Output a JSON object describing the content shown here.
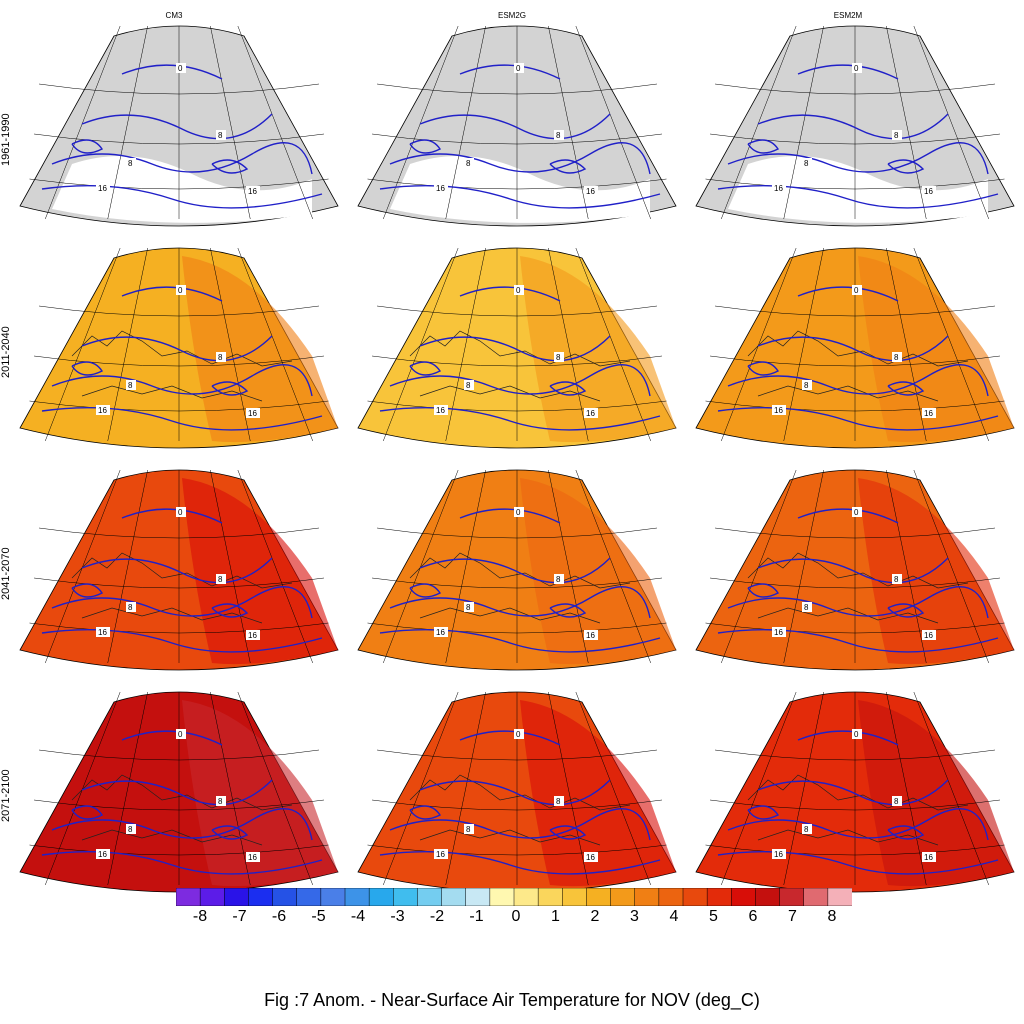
{
  "columns": [
    "CM3",
    "ESM2G",
    "ESM2M"
  ],
  "rows": [
    "1961-1990",
    "2011-2040",
    "2041-2070",
    "2071-2100"
  ],
  "panel_fill_levels": [
    [
      null,
      null,
      null
    ],
    [
      2,
      1.5,
      2.5
    ],
    [
      4.5,
      3,
      4
    ],
    [
      6,
      4.5,
      5
    ]
  ],
  "contour_labels": {
    "0": "0",
    "8": "8",
    "16": "16"
  },
  "colorbar": {
    "ticks": [
      "-8",
      "-7",
      "-6",
      "-5",
      "-4",
      "-3",
      "-2",
      "-1",
      "0",
      "1",
      "2",
      "3",
      "4",
      "5",
      "6",
      "7",
      "8"
    ],
    "colors": [
      "#7d2be0",
      "#5c1ce8",
      "#2a13e8",
      "#1b2ef0",
      "#2552e6",
      "#3569e8",
      "#4a7fe8",
      "#3d93e8",
      "#28a8ec",
      "#40bdee",
      "#74cdf0",
      "#a4dcf0",
      "#c8e8f4",
      "#fff8b0",
      "#fde98a",
      "#fad65c",
      "#f8c43a",
      "#f5b022",
      "#f39a1a",
      "#f07f14",
      "#ec6410",
      "#e8490d",
      "#e32b0a",
      "#d80e08",
      "#c4100e",
      "#c8282d",
      "#e06a70",
      "#f4b0b8"
    ]
  },
  "caption": "Fig :7  Anom.  - Near-Surface Air Temperature for NOV (deg_C)"
}
